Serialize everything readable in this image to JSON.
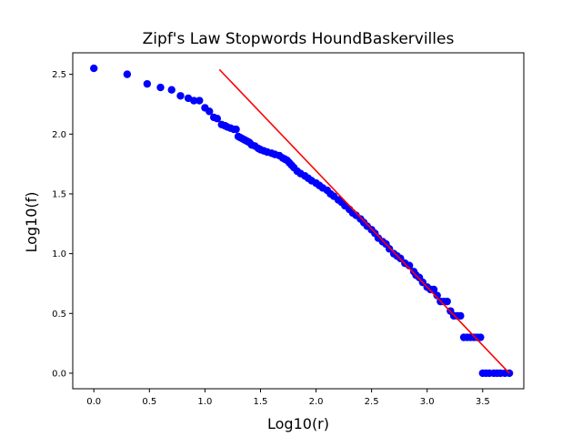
{
  "chart_data": {
    "type": "scatter",
    "title": "Zipf's Law Stopwords HoundBaskervilles",
    "xlabel": "Log10(r)",
    "ylabel": "Log10(f)",
    "xlim": [
      -0.19,
      3.87
    ],
    "ylim": [
      -0.13,
      2.68
    ],
    "xticks": [
      0.0,
      0.5,
      1.0,
      1.5,
      2.0,
      2.5,
      3.0,
      3.5
    ],
    "yticks": [
      0.0,
      0.5,
      1.0,
      1.5,
      2.0,
      2.5
    ],
    "xtick_labels": [
      "0.0",
      "0.5",
      "1.0",
      "1.5",
      "2.0",
      "2.5",
      "3.0",
      "3.5"
    ],
    "ytick_labels": [
      "0.0",
      "0.5",
      "1.0",
      "1.5",
      "2.0",
      "2.5"
    ],
    "grid": false,
    "series": [
      {
        "type": "scatter",
        "color": "#0000ff",
        "x": [
          0.0,
          0.3,
          0.48,
          0.6,
          0.7,
          0.78,
          0.85,
          0.9,
          0.95,
          1.0,
          1.04,
          1.08,
          1.11,
          1.15,
          1.18,
          1.2,
          1.23,
          1.26,
          1.28,
          1.3,
          1.32,
          1.34,
          1.36,
          1.38,
          1.4,
          1.42,
          1.45,
          1.48,
          1.5,
          1.53,
          1.56,
          1.6,
          1.63,
          1.67,
          1.7,
          1.72,
          1.74,
          1.76,
          1.78,
          1.8,
          1.83,
          1.86,
          1.9,
          1.93,
          1.96,
          2.0,
          2.03,
          2.06,
          2.1,
          2.13,
          2.16,
          2.2,
          2.23,
          2.26,
          2.3,
          2.33,
          2.36,
          2.4,
          2.43,
          2.46,
          2.5,
          2.53,
          2.56,
          2.6,
          2.63,
          2.66,
          2.7,
          2.73,
          2.76,
          2.8,
          2.84,
          2.88,
          2.9,
          2.93,
          2.96,
          3.0,
          3.03,
          3.06,
          3.09,
          3.12,
          3.15,
          3.18,
          3.21,
          3.24,
          3.27,
          3.3,
          3.33,
          3.36,
          3.39,
          3.42,
          3.45,
          3.48,
          3.5,
          3.53,
          3.56,
          3.6,
          3.63,
          3.66,
          3.7,
          3.74
        ],
        "y": [
          2.55,
          2.5,
          2.42,
          2.39,
          2.37,
          2.32,
          2.3,
          2.28,
          2.28,
          2.22,
          2.19,
          2.14,
          2.13,
          2.08,
          2.07,
          2.06,
          2.05,
          2.04,
          2.04,
          1.98,
          1.97,
          1.96,
          1.95,
          1.94,
          1.93,
          1.91,
          1.9,
          1.88,
          1.87,
          1.86,
          1.85,
          1.84,
          1.83,
          1.82,
          1.8,
          1.79,
          1.78,
          1.76,
          1.74,
          1.72,
          1.69,
          1.67,
          1.65,
          1.63,
          1.61,
          1.59,
          1.57,
          1.55,
          1.53,
          1.5,
          1.48,
          1.45,
          1.43,
          1.4,
          1.37,
          1.34,
          1.32,
          1.29,
          1.26,
          1.23,
          1.2,
          1.17,
          1.13,
          1.1,
          1.08,
          1.04,
          1.0,
          0.98,
          0.96,
          0.92,
          0.9,
          0.85,
          0.82,
          0.8,
          0.76,
          0.72,
          0.7,
          0.7,
          0.65,
          0.6,
          0.6,
          0.6,
          0.52,
          0.48,
          0.48,
          0.48,
          0.3,
          0.3,
          0.3,
          0.3,
          0.3,
          0.3,
          0.0,
          0.0,
          0.0,
          0.0,
          0.0,
          0.0,
          0.0,
          0.0
        ]
      },
      {
        "type": "line",
        "color": "#ff0000",
        "x": [
          1.13,
          3.74
        ],
        "y": [
          2.54,
          0.0
        ]
      }
    ]
  }
}
